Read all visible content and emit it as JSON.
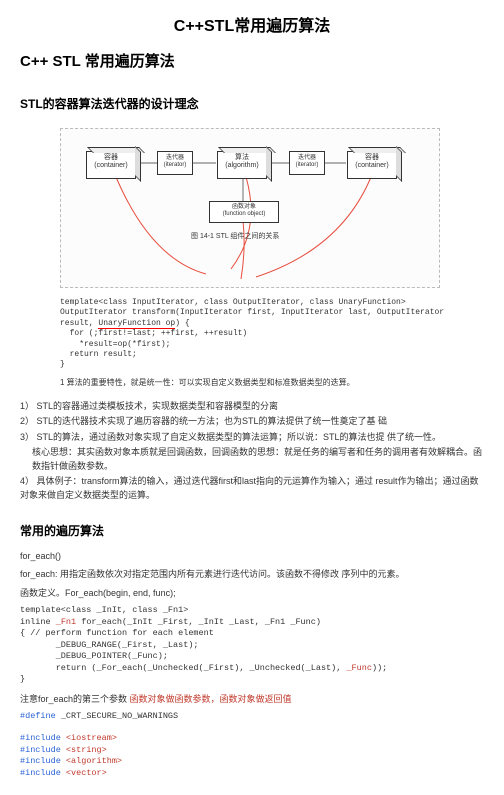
{
  "title_main": "C++STL常用遍历算法",
  "title_sub": "C++ STL 常用遍历算法",
  "section1": "STL的容器算法迭代器的设计理念",
  "diagram": {
    "box_left": "容器\n(container)",
    "iter1": "迭代器\n(iterator)",
    "box_mid": "算法\n(algorithm)",
    "iter2": "迭代器\n(iterator)",
    "box_right": "容器\n(container)",
    "func_obj": "函数对象\n(function object)",
    "caption": "图 14-1  STL 组件之间的关系"
  },
  "code1_l1": "template<class InputIterator, class OutputIterator, class UnaryFunction>",
  "code1_l2": "OutputIterator transform(InputIterator first, InputIterator last, OutputIterator",
  "code1_l3a": "result, ",
  "code1_l3b": "UnaryFunction op",
  "code1_l3c": ") {",
  "code1_l4": "  for (;first!=last; ++first, ++result)",
  "code1_l5": "    *result=op(*first);",
  "code1_l6": "  return result;",
  "code1_l7": "}",
  "note1": "1  算法的重要特性，就是统一性：可以实现自定义数据类型和标准数据类型的迭算。",
  "p1": "1）  STL的容器通过类模板技术，实现数据类型和容器模型的分离",
  "p2": "2）  STL的迭代器技术实现了遍历容器的统一方法；也为STL的算法提供了统一性奠定了基 础",
  "p3": "3）  STL的算法，通过函数对象实现了自定义数据类型的算法运算；所以说：STL的算法也提 供了统一性。",
  "p3b": "核心思想：其实函数对象本质就是回调函数，回调函数的思想：就是任务的编写者和任务的调用者有效解耦合。函数指针做函数参数。",
  "p4": "4）  具体例子：transform算法的输入，通过迭代器first和last指向的元运算作为输入；通过 result作为输出；通过函数对象来做自定义数据类型的运算。",
  "section2": "常用的遍历算法",
  "fn_each": "for_each()",
  "fn_desc": "for_each: 用指定函数依次对指定范围内所有元素进行迭代访问。该函数不得修改 序列中的元素。",
  "fn_def": "函数定义。For_each(begin, end, func);",
  "tpl_l1": "template<class _InIt, class _Fn1>",
  "tpl_l2a": "inline ",
  "tpl_l2b": "_Fn1",
  "tpl_l2c": " for_each(_InIt _First, _InIt _Last, _Fn1 _Func)",
  "tpl_l3": "{ // perform function for each element",
  "tpl_l4": "       _DEBUG_RANGE(_First, _Last);",
  "tpl_l5": "       _DEBUG_POINTER(_Func);",
  "tpl_l6a": "       return (_For_each(_Unchecked(_First), _Unchecked(_Last), ",
  "tpl_l6b": "_Func",
  "tpl_l6c": "));",
  "tpl_l7": "}",
  "note2a": "注意for_each的第三个参数 ",
  "note2b": "函数对象做函数参数，函数对象做返回值",
  "define_l": "#define",
  "define_r": " _CRT_SECURE_NO_WARNINGS",
  "inc1a": "#include ",
  "inc1b": "<iostream>",
  "inc2a": "#include ",
  "inc2b": "<string>",
  "inc3a": "#include ",
  "inc3b": "<algorithm>",
  "inc4a": "#include ",
  "inc4b": "<vector>"
}
